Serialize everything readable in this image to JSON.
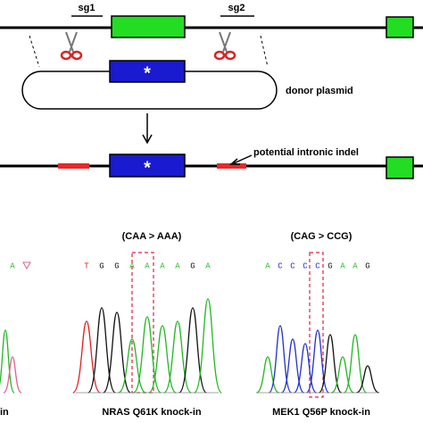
{
  "labels": {
    "sg1": "sg1",
    "sg2": "sg2",
    "donor": "donor plasmid",
    "indel": "potential intronic indel",
    "asterisk_donor": "*",
    "asterisk_target": "*"
  },
  "panels": [
    {
      "mutation": "(CAA > AAA)",
      "sequence": [
        "T",
        "G",
        "G",
        "A",
        "A",
        "A",
        "A",
        "G",
        "A"
      ],
      "caption": "NRAS Q61K knock-in"
    },
    {
      "mutation": "(CAG > CCG)",
      "sequence": [
        "A",
        "C",
        "C",
        "C",
        "C",
        "G",
        "A",
        "A",
        "G"
      ],
      "caption": "MEK1 Q56P knock-in"
    }
  ],
  "left_partial": {
    "sequence": [
      "A"
    ],
    "caption": "in"
  }
}
